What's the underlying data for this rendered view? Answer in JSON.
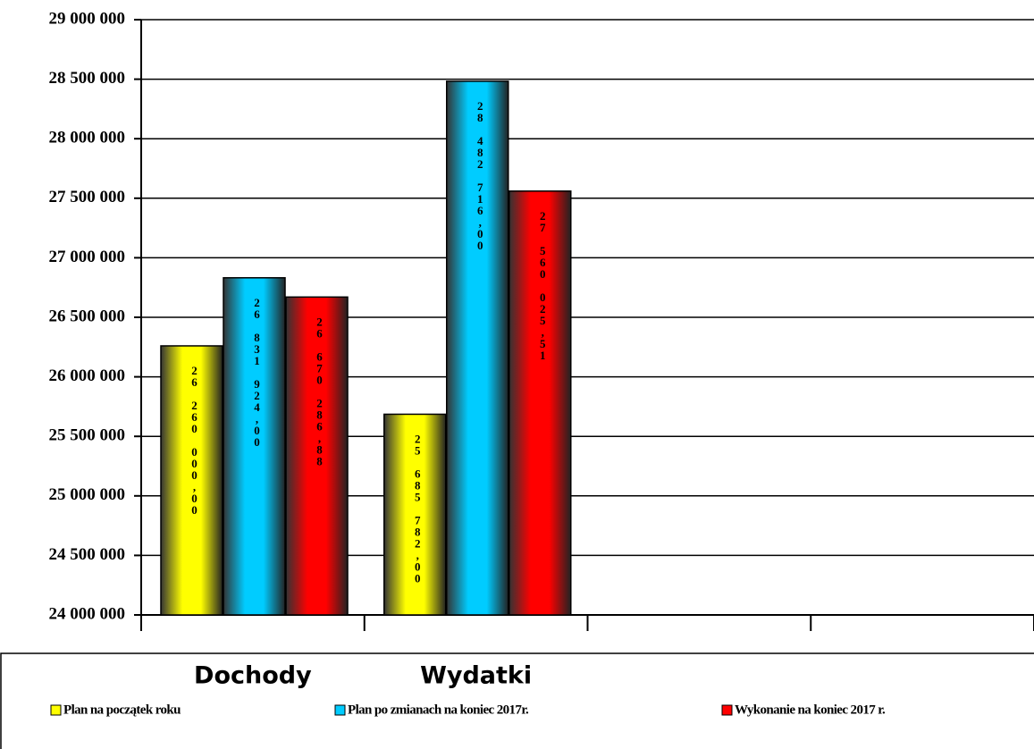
{
  "chart_data": {
    "type": "bar",
    "categories": [
      "Dochody",
      "Wydatki",
      null,
      null
    ],
    "series": [
      {
        "name": "Plan na początek roku",
        "color": "#ffff00",
        "values": [
          26260000.0,
          25685782.0,
          null,
          null
        ],
        "value_labels": [
          "26 260 000,00",
          "25 685 782,00",
          null,
          null
        ]
      },
      {
        "name": "Plan po zmianach na koniec 2017r.",
        "color": "#00ccff",
        "values": [
          26831924.0,
          28482716.0,
          null,
          null
        ],
        "value_labels": [
          "26 831 924,00",
          "28 482 716,00",
          null,
          null
        ]
      },
      {
        "name": "Wykonanie na koniec 2017 r.",
        "color": "#ff0000",
        "values": [
          26670286.88,
          27560025.51,
          null,
          null
        ],
        "value_labels": [
          "26 670 286,88",
          "27 560 025,51",
          null,
          null
        ]
      }
    ],
    "ylim": [
      24000000,
      29000000
    ],
    "yticks": [
      {
        "value": 24000000,
        "label": "24 000 000"
      },
      {
        "value": 24500000,
        "label": "24 500 000"
      },
      {
        "value": 25000000,
        "label": "25 000 000"
      },
      {
        "value": 25500000,
        "label": "25 500 000"
      },
      {
        "value": 26000000,
        "label": "26 000 000"
      },
      {
        "value": 26500000,
        "label": "26 500 000"
      },
      {
        "value": 27000000,
        "label": "27 000 000"
      },
      {
        "value": 27500000,
        "label": "27 500 000"
      },
      {
        "value": 28000000,
        "label": "28 000 000"
      },
      {
        "value": 28500000,
        "label": "28 500 000"
      },
      {
        "value": 29000000,
        "label": "29 000 000"
      }
    ],
    "grid": true
  }
}
